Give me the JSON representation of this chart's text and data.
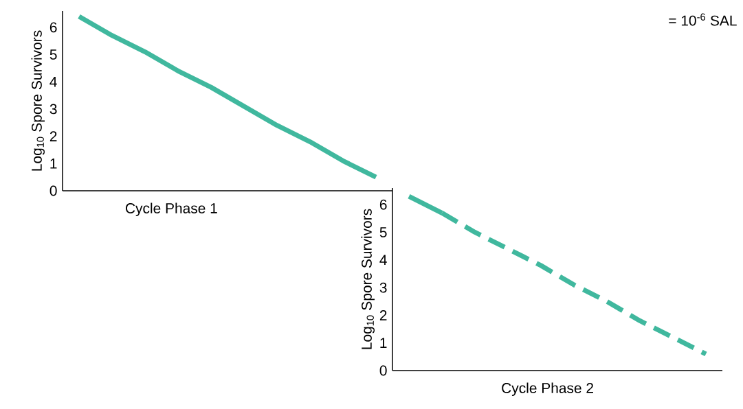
{
  "chart_data": [
    {
      "type": "line",
      "xlabel": "Cycle Phase 1",
      "ylabel": "Log$_{10}$ Spore Survivors",
      "categories": [
        null,
        null,
        null,
        null,
        null,
        null,
        null,
        null,
        null,
        null
      ],
      "series": [
        {
          "color": "#40b89e",
          "values": [
            6.4,
            5.7,
            5.1,
            4.4,
            3.8,
            3.1,
            2.4,
            1.8,
            1.1,
            0.5
          ],
          "line_style": "solid"
        }
      ],
      "ylim": [
        0,
        6.6
      ],
      "yticks": [
        0,
        1,
        2,
        3,
        4,
        5,
        6
      ],
      "tick_labels": "y"
    },
    {
      "type": "line",
      "xlabel": "Cycle Phase 2",
      "ylabel": "Log$_{10}$ Spore Survivors",
      "categories": [
        null,
        null,
        null,
        null,
        null,
        null,
        null,
        null,
        null,
        null
      ],
      "series": [
        {
          "color": "#40b89e",
          "values": [
            6.3,
            5.7,
            null,
            null,
            null,
            null,
            null,
            null,
            null,
            null
          ],
          "line_style": "solid"
        },
        {
          "color": "#40b89e",
          "values": [
            null,
            5.7,
            5.0,
            4.4,
            3.8,
            3.1,
            2.5,
            1.8,
            1.2,
            0.6
          ],
          "line_style": "dashed"
        }
      ],
      "ylim": [
        0,
        6.6
      ],
      "yticks": [
        0,
        1,
        2,
        3,
        4,
        5,
        6
      ],
      "tick_labels": "y",
      "annotations": [
        "= 10$^{-6}$ SAL"
      ]
    }
  ]
}
